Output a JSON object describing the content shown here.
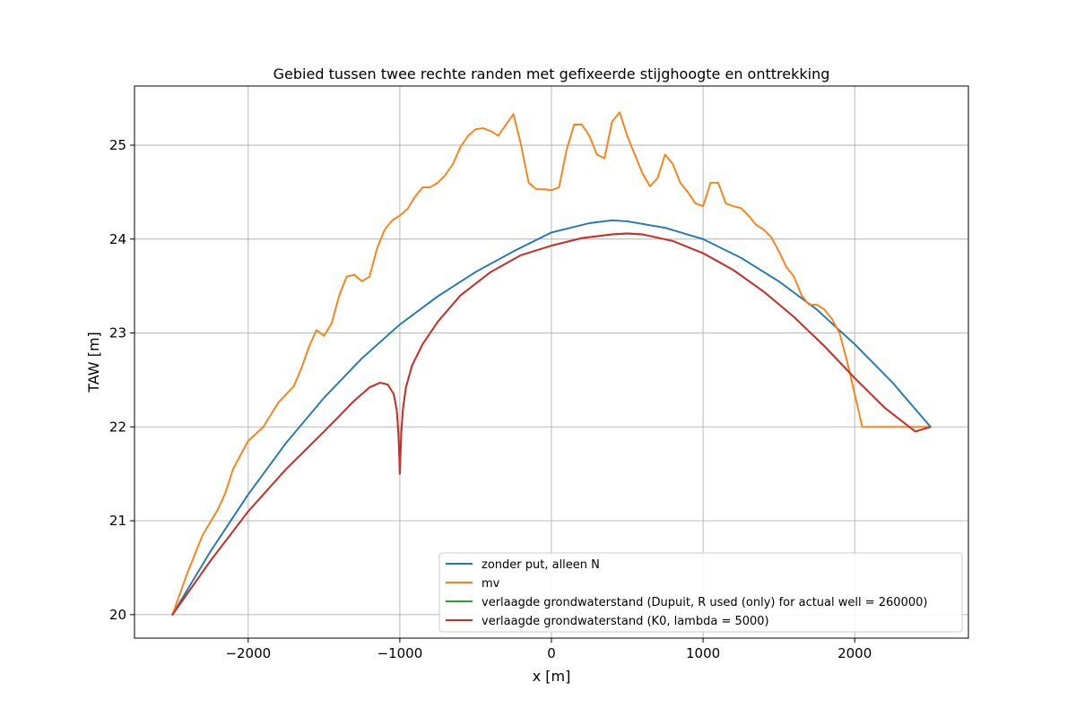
{
  "chart_data": {
    "type": "line",
    "title": "Gebied tussen twee rechte randen met gefixeerde stijghoogte en onttrekking",
    "xlabel": "x [m]",
    "ylabel": "TAW [m]",
    "xlim": [
      -2750,
      2750
    ],
    "ylim": [
      19.75,
      25.63
    ],
    "xticks": [
      -2000,
      -1000,
      0,
      1000,
      2000
    ],
    "xtick_labels": [
      "−2000",
      "−1000",
      "0",
      "1000",
      "2000"
    ],
    "yticks": [
      20,
      21,
      22,
      23,
      24,
      25
    ],
    "ytick_labels": [
      "20",
      "21",
      "22",
      "23",
      "24",
      "25"
    ],
    "grid": true,
    "legend_position": "lower-right",
    "series": [
      {
        "name": "zonder put, alleen N",
        "color": "#1f77b4",
        "x": [
          -2500,
          -2250,
          -2000,
          -1750,
          -1500,
          -1250,
          -1000,
          -750,
          -500,
          -250,
          0,
          250,
          400,
          500,
          750,
          1000,
          1250,
          1500,
          1750,
          2000,
          2250,
          2500
        ],
        "y": [
          20.0,
          20.67,
          21.28,
          21.83,
          22.31,
          22.73,
          23.09,
          23.39,
          23.65,
          23.87,
          24.07,
          24.17,
          24.2,
          24.19,
          24.12,
          24.0,
          23.8,
          23.55,
          23.25,
          22.88,
          22.47,
          22.0
        ]
      },
      {
        "name": "mv",
        "color": "#ff7f0e",
        "x": [
          -2500,
          -2400,
          -2300,
          -2200,
          -2150,
          -2100,
          -2000,
          -1900,
          -1800,
          -1700,
          -1650,
          -1600,
          -1550,
          -1500,
          -1450,
          -1400,
          -1350,
          -1300,
          -1250,
          -1200,
          -1150,
          -1100,
          -1050,
          -1000,
          -950,
          -900,
          -850,
          -800,
          -750,
          -700,
          -650,
          -600,
          -550,
          -500,
          -450,
          -400,
          -350,
          -300,
          -250,
          -200,
          -150,
          -100,
          -50,
          0,
          50,
          100,
          150,
          200,
          250,
          300,
          350,
          400,
          450,
          500,
          550,
          600,
          650,
          700,
          750,
          800,
          850,
          900,
          950,
          1000,
          1050,
          1100,
          1150,
          1200,
          1250,
          1300,
          1350,
          1400,
          1450,
          1500,
          1550,
          1600,
          1650,
          1700,
          1750,
          1800,
          1850,
          1900,
          1950,
          2000,
          2050,
          2100,
          2200,
          2300,
          2400,
          2500
        ],
        "y": [
          20.0,
          20.45,
          20.85,
          21.12,
          21.3,
          21.55,
          21.85,
          22.0,
          22.26,
          22.43,
          22.62,
          22.85,
          23.03,
          22.97,
          23.1,
          23.4,
          23.6,
          23.62,
          23.55,
          23.6,
          23.9,
          24.1,
          24.2,
          24.25,
          24.32,
          24.45,
          24.55,
          24.55,
          24.6,
          24.68,
          24.8,
          24.98,
          25.1,
          25.17,
          25.18,
          25.15,
          25.1,
          25.22,
          25.33,
          25.0,
          24.6,
          24.53,
          24.53,
          24.52,
          24.55,
          24.95,
          25.22,
          25.22,
          25.1,
          24.9,
          24.86,
          25.25,
          25.35,
          25.1,
          24.9,
          24.7,
          24.56,
          24.65,
          24.9,
          24.8,
          24.6,
          24.5,
          24.38,
          24.35,
          24.6,
          24.6,
          24.38,
          24.35,
          24.33,
          24.25,
          24.15,
          24.1,
          24.02,
          23.87,
          23.7,
          23.6,
          23.4,
          23.3,
          23.3,
          23.25,
          23.15,
          23.0,
          22.7,
          22.35,
          22.0,
          22.0,
          22.0,
          22.0,
          22.0,
          22.0
        ]
      },
      {
        "name": "verlaagde grondwaterstand (Dupuit, R used (only) for actual well = 260000)",
        "color": "#2ca02c",
        "x": [
          -2500,
          -2250,
          -2000,
          -1750,
          -1500,
          -1300,
          -1200,
          -1130,
          -1080,
          -1040,
          -1020,
          -1010,
          -1005,
          -1000,
          -995,
          -990,
          -980,
          -960,
          -920,
          -850,
          -750,
          -600,
          -400,
          -200,
          0,
          200,
          400,
          500,
          600,
          800,
          1000,
          1200,
          1400,
          1600,
          1800,
          2000,
          2200,
          2400,
          2500
        ],
        "y": [
          20.0,
          20.57,
          21.1,
          21.55,
          21.95,
          22.28,
          22.42,
          22.47,
          22.45,
          22.35,
          22.18,
          21.95,
          21.75,
          21.5,
          21.75,
          21.95,
          22.18,
          22.42,
          22.65,
          22.88,
          23.12,
          23.4,
          23.65,
          23.83,
          23.93,
          24.01,
          24.05,
          24.06,
          24.05,
          23.98,
          23.85,
          23.67,
          23.44,
          23.17,
          22.86,
          22.52,
          22.2,
          21.95,
          22.0
        ]
      },
      {
        "name": "verlaagde grondwaterstand (K0, lambda = 5000)",
        "color": "#d62728",
        "x": [
          -2500,
          -2250,
          -2000,
          -1750,
          -1500,
          -1300,
          -1200,
          -1130,
          -1080,
          -1040,
          -1020,
          -1010,
          -1005,
          -1000,
          -995,
          -990,
          -980,
          -960,
          -920,
          -850,
          -750,
          -600,
          -400,
          -200,
          0,
          200,
          400,
          500,
          600,
          800,
          1000,
          1200,
          1400,
          1600,
          1800,
          2000,
          2200,
          2400,
          2500
        ],
        "y": [
          20.0,
          20.57,
          21.1,
          21.55,
          21.95,
          22.28,
          22.42,
          22.47,
          22.45,
          22.35,
          22.18,
          21.95,
          21.75,
          21.5,
          21.75,
          21.95,
          22.18,
          22.42,
          22.65,
          22.88,
          23.12,
          23.4,
          23.65,
          23.83,
          23.93,
          24.01,
          24.05,
          24.06,
          24.05,
          23.98,
          23.85,
          23.67,
          23.44,
          23.17,
          22.86,
          22.52,
          22.2,
          21.95,
          22.0
        ]
      }
    ]
  }
}
